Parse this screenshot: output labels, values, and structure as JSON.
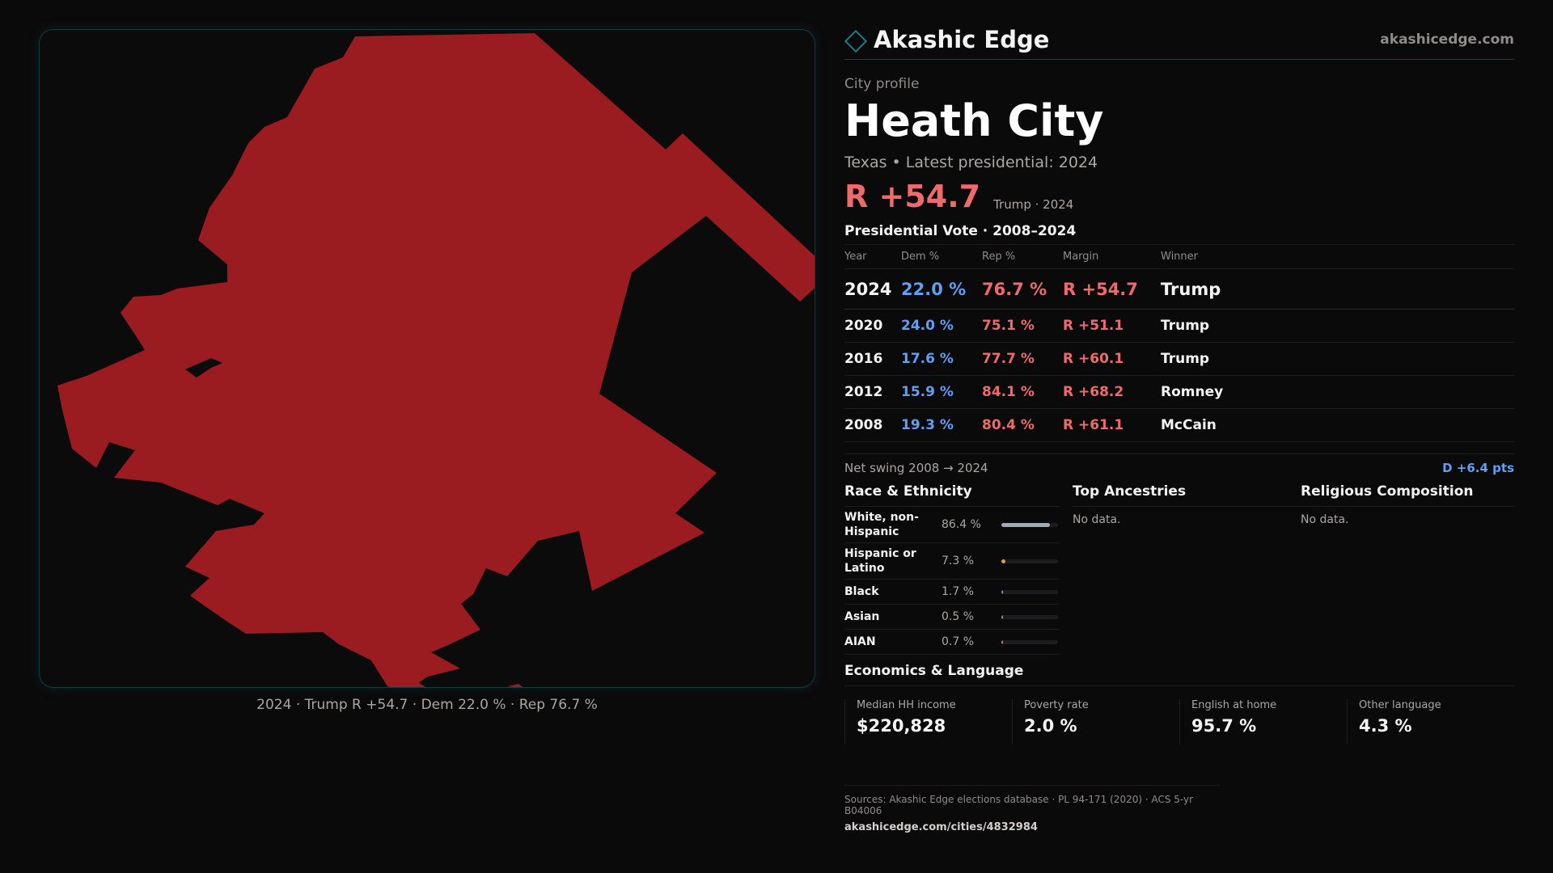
{
  "colors": {
    "republican": "#ef6b6b",
    "democrat": "#5f9ff5",
    "map_fill": "#9b1c20",
    "accent": "#1f7a86"
  },
  "brand": {
    "name": "Akashic Edge",
    "url": "akashicedge.com",
    "icon": "diamond-icon"
  },
  "profile": {
    "eyebrow": "City profile",
    "title": "Heath City",
    "subtitle": "Texas • Latest presidential: 2024",
    "margin": "R +54.7",
    "margin_note": "Trump · 2024"
  },
  "map": {
    "caption": "2024 · Trump R +54.7 · Dem 22.0 % · Rep 76.7 %"
  },
  "vote": {
    "title": "Presidential Vote · 2008–2024",
    "headers": {
      "year": "Year",
      "dem": "Dem %",
      "rep": "Rep %",
      "margin": "Margin",
      "winner": "Winner"
    },
    "rows": [
      {
        "year": "2024",
        "dem": "22.0 %",
        "rep": "76.7 %",
        "margin": "R +54.7",
        "winner": "Trump"
      },
      {
        "year": "2020",
        "dem": "24.0 %",
        "rep": "75.1 %",
        "margin": "R +51.1",
        "winner": "Trump"
      },
      {
        "year": "2016",
        "dem": "17.6 %",
        "rep": "77.7 %",
        "margin": "R +60.1",
        "winner": "Trump"
      },
      {
        "year": "2012",
        "dem": "15.9 %",
        "rep": "84.1 %",
        "margin": "R +68.2",
        "winner": "Romney"
      },
      {
        "year": "2008",
        "dem": "19.3 %",
        "rep": "80.4 %",
        "margin": "R +61.1",
        "winner": "McCain"
      }
    ],
    "swing_label": "Net swing 2008 → 2024",
    "swing_value": "D +6.4 pts"
  },
  "race": {
    "title": "Race & Ethnicity",
    "rows": [
      {
        "label": "White, non-Hispanic",
        "pct": "86.4 %",
        "share": 0.864,
        "color": "#a3aab8"
      },
      {
        "label": "Hispanic or Latino",
        "pct": "7.3 %",
        "share": 0.073,
        "color": "#e0a13a"
      },
      {
        "label": "Black",
        "pct": "1.7 %",
        "share": 0.017,
        "color": "#8c7ae6"
      },
      {
        "label": "Asian",
        "pct": "0.5 %",
        "share": 0.005,
        "color": "#3fb58c"
      },
      {
        "label": "AIAN",
        "pct": "0.7 %",
        "share": 0.007,
        "color": "#c97a4a"
      }
    ]
  },
  "ancestries": {
    "title": "Top Ancestries",
    "empty": "No data."
  },
  "religion": {
    "title": "Religious Composition",
    "empty": "No data."
  },
  "economics": {
    "title": "Economics & Language",
    "cells": [
      {
        "label": "Median HH income",
        "value": "$220,828"
      },
      {
        "label": "Poverty rate",
        "value": "2.0 %"
      },
      {
        "label": "English at home",
        "value": "95.7 %"
      },
      {
        "label": "Other language",
        "value": "4.3 %"
      }
    ]
  },
  "sources": {
    "text": "Sources: Akashic Edge elections database · PL 94-171 (2020) · ACS 5-yr B04006",
    "url": "akashicedge.com/cities/4832984"
  }
}
